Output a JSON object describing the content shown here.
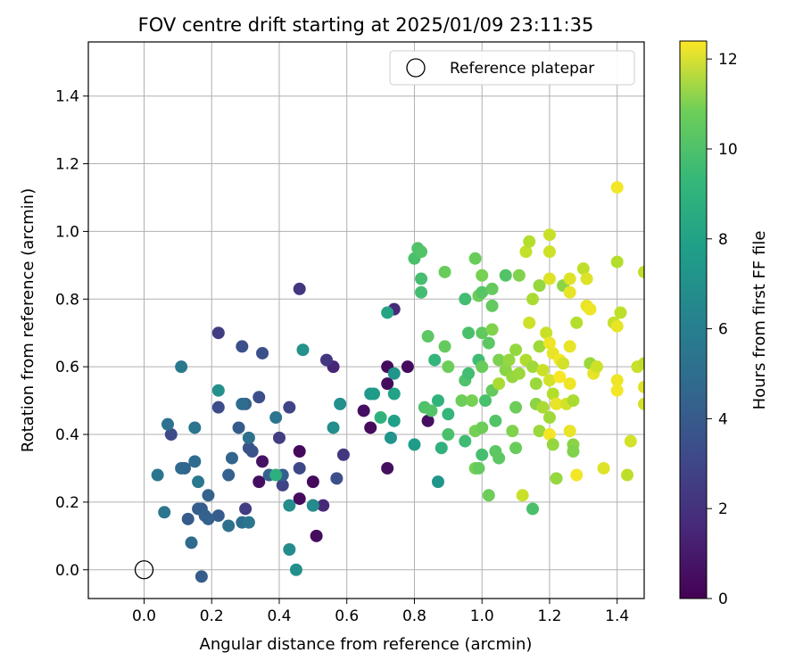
{
  "chart_data": {
    "type": "scatter",
    "title": "FOV centre drift starting at 2025/01/09 23:11:35",
    "xlabel": "Angular distance from reference (arcmin)",
    "ylabel": "Rotation from reference (arcmin)",
    "xlim": [
      -0.165,
      1.48
    ],
    "ylim": [
      -0.085,
      1.56
    ],
    "xticks": [
      "0.0",
      "0.2",
      "0.4",
      "0.6",
      "0.8",
      "1.0",
      "1.2",
      "1.4"
    ],
    "xtick_values": [
      0,
      0.2,
      0.4,
      0.6,
      0.8,
      1.0,
      1.2,
      1.4
    ],
    "yticks": [
      "0.0",
      "0.2",
      "0.4",
      "0.6",
      "0.8",
      "1.0",
      "1.2",
      "1.4"
    ],
    "ytick_values": [
      0,
      0.2,
      0.4,
      0.6,
      0.8,
      1.0,
      1.2,
      1.4
    ],
    "grid": true,
    "legend": {
      "label": "Reference platepar",
      "placement": "top-right",
      "marker": "open-circle"
    },
    "colorbar": {
      "label": "Hours from first FF file",
      "colormap": "viridis",
      "range": [
        0,
        12.4
      ],
      "ticks": [
        "0",
        "2",
        "4",
        "6",
        "8",
        "10",
        "12"
      ],
      "tick_values": [
        0,
        2,
        4,
        6,
        8,
        10,
        12
      ]
    },
    "reference_point": {
      "x": 0.0,
      "y": 0.0
    },
    "points": [
      [
        0.46,
        0.35,
        0.3
      ],
      [
        0.5,
        0.26,
        0.3
      ],
      [
        0.46,
        0.21,
        0.4
      ],
      [
        0.51,
        0.1,
        0.4
      ],
      [
        0.34,
        0.26,
        0.5
      ],
      [
        0.35,
        0.32,
        0.6
      ],
      [
        0.65,
        0.47,
        0.5
      ],
      [
        0.67,
        0.42,
        0.4
      ],
      [
        0.72,
        0.55,
        0.4
      ],
      [
        0.72,
        0.6,
        0.4
      ],
      [
        0.72,
        0.3,
        0.5
      ],
      [
        0.78,
        0.6,
        0.4
      ],
      [
        0.84,
        0.44,
        0.5
      ],
      [
        0.53,
        0.19,
        1.4
      ],
      [
        0.56,
        0.6,
        1.3
      ],
      [
        0.46,
        0.83,
        2.0
      ],
      [
        0.54,
        0.62,
        2.0
      ],
      [
        0.59,
        0.34,
        2.0
      ],
      [
        0.74,
        0.77,
        1.5
      ],
      [
        0.5,
        0.19,
        1.6
      ],
      [
        0.22,
        0.7,
        2.2
      ],
      [
        0.3,
        0.18,
        2.2
      ],
      [
        0.4,
        0.39,
        2.3
      ],
      [
        0.41,
        0.25,
        2.5
      ],
      [
        0.43,
        0.48,
        2.5
      ],
      [
        0.46,
        0.3,
        2.7
      ],
      [
        0.57,
        0.27,
        3.0
      ],
      [
        0.08,
        0.4,
        2.8
      ],
      [
        0.22,
        0.48,
        2.9
      ],
      [
        0.29,
        0.66,
        3.0
      ],
      [
        0.34,
        0.51,
        3.0
      ],
      [
        0.35,
        0.64,
        3.1
      ],
      [
        0.31,
        0.36,
        3.3
      ],
      [
        0.32,
        0.35,
        3.2
      ],
      [
        0.28,
        0.42,
        3.5
      ],
      [
        0.17,
        0.18,
        3.5
      ],
      [
        0.13,
        0.15,
        3.6
      ],
      [
        0.16,
        0.18,
        3.7
      ],
      [
        0.22,
        0.16,
        3.6
      ],
      [
        0.18,
        0.16,
        3.8
      ],
      [
        0.19,
        0.22,
        3.9
      ],
      [
        0.25,
        0.28,
        3.8
      ],
      [
        0.3,
        0.49,
        3.9
      ],
      [
        0.26,
        0.33,
        4.0
      ],
      [
        0.37,
        0.28,
        3.8
      ],
      [
        0.41,
        0.28,
        3.7
      ],
      [
        0.19,
        0.15,
        3.8
      ],
      [
        0.12,
        0.3,
        3.9
      ],
      [
        0.11,
        0.3,
        4.2
      ],
      [
        0.14,
        0.08,
        4.3
      ],
      [
        0.15,
        0.32,
        4.4
      ],
      [
        0.17,
        -0.02,
        3.6
      ],
      [
        0.29,
        0.49,
        4.4
      ],
      [
        0.31,
        0.39,
        4.6
      ],
      [
        0.39,
        0.45,
        4.8
      ],
      [
        0.25,
        0.13,
        4.6
      ],
      [
        0.29,
        0.14,
        4.4
      ],
      [
        0.31,
        0.14,
        4.9
      ],
      [
        0.16,
        0.26,
        5.0
      ],
      [
        0.04,
        0.28,
        4.9
      ],
      [
        0.07,
        0.43,
        4.6
      ],
      [
        0.15,
        0.42,
        4.8
      ],
      [
        0.11,
        0.6,
        5.0
      ],
      [
        0.06,
        0.17,
        4.8
      ],
      [
        0.22,
        0.53,
        6.2
      ],
      [
        0.43,
        0.06,
        6.0
      ],
      [
        0.43,
        0.19,
        6.1
      ],
      [
        0.45,
        0.0,
        6.2
      ],
      [
        0.47,
        0.65,
        6.3
      ],
      [
        0.5,
        0.19,
        6.0
      ],
      [
        0.56,
        0.42,
        6.1
      ],
      [
        0.58,
        0.49,
        6.2
      ],
      [
        0.67,
        0.52,
        6.5
      ],
      [
        0.68,
        0.52,
        6.8
      ],
      [
        0.73,
        0.39,
        6.4
      ],
      [
        0.74,
        0.58,
        6.4
      ],
      [
        0.72,
        0.76,
        7.2
      ],
      [
        0.74,
        0.52,
        7.1
      ],
      [
        0.74,
        0.44,
        7.0
      ],
      [
        0.8,
        0.37,
        6.8
      ],
      [
        0.87,
        0.26,
        6.5
      ],
      [
        0.39,
        0.28,
        7.8
      ],
      [
        0.7,
        0.45,
        8.0
      ],
      [
        0.8,
        0.92,
        8.8
      ],
      [
        0.81,
        0.95,
        8.9
      ],
      [
        0.82,
        0.82,
        8.6
      ],
      [
        0.82,
        0.94,
        9.0
      ],
      [
        0.82,
        0.86,
        8.7
      ],
      [
        0.83,
        0.48,
        8.9
      ],
      [
        0.85,
        0.47,
        9.0
      ],
      [
        0.84,
        0.69,
        9.2
      ],
      [
        0.87,
        0.5,
        8.0
      ],
      [
        0.86,
        0.62,
        8.1
      ],
      [
        0.88,
        0.36,
        7.9
      ],
      [
        0.89,
        0.88,
        9.5
      ],
      [
        0.89,
        0.66,
        9.4
      ],
      [
        0.9,
        0.6,
        9.6
      ],
      [
        0.9,
        0.46,
        8.2
      ],
      [
        0.9,
        0.4,
        8.8
      ],
      [
        0.94,
        0.5,
        9.6
      ],
      [
        0.95,
        0.8,
        8.6
      ],
      [
        0.95,
        0.56,
        8.9
      ],
      [
        0.95,
        0.38,
        8.5
      ],
      [
        0.96,
        0.58,
        8.6
      ],
      [
        0.96,
        0.7,
        8.8
      ],
      [
        0.97,
        0.5,
        9.8
      ],
      [
        0.98,
        0.3,
        9.8
      ],
      [
        0.98,
        0.92,
        9.5
      ],
      [
        0.98,
        0.41,
        9.8
      ],
      [
        0.99,
        0.62,
        8.5
      ],
      [
        0.99,
        0.3,
        9.4
      ],
      [
        0.99,
        0.81,
        9.6
      ],
      [
        1.0,
        0.87,
        9.8
      ],
      [
        1.0,
        0.42,
        9.6
      ],
      [
        1.0,
        0.6,
        9.5
      ],
      [
        1.0,
        0.34,
        8.7
      ],
      [
        1.0,
        0.7,
        9.3
      ],
      [
        1.0,
        0.82,
        9.1
      ],
      [
        1.01,
        0.5,
        8.8
      ],
      [
        1.02,
        0.22,
        9.6
      ],
      [
        1.02,
        0.67,
        9.2
      ],
      [
        1.03,
        0.53,
        9.4
      ],
      [
        1.03,
        0.78,
        9.4
      ],
      [
        1.03,
        0.83,
        9.4
      ],
      [
        1.03,
        0.71,
        10.0
      ],
      [
        1.04,
        0.44,
        9.0
      ],
      [
        1.04,
        0.35,
        9.2
      ],
      [
        1.05,
        0.33,
        9.2
      ],
      [
        1.05,
        0.62,
        9.9
      ],
      [
        1.05,
        0.55,
        10.8
      ],
      [
        1.07,
        0.87,
        9.0
      ],
      [
        1.07,
        0.59,
        10.2
      ],
      [
        1.08,
        0.62,
        10.4
      ],
      [
        1.09,
        0.57,
        10.4
      ],
      [
        1.09,
        0.41,
        10.0
      ],
      [
        1.1,
        0.36,
        9.5
      ],
      [
        1.1,
        0.48,
        9.6
      ],
      [
        1.1,
        0.65,
        10.4
      ],
      [
        1.11,
        0.58,
        10.5
      ],
      [
        1.11,
        0.87,
        10.0
      ],
      [
        1.12,
        0.22,
        11.4
      ],
      [
        1.13,
        0.94,
        11.3
      ],
      [
        1.13,
        0.62,
        10.9
      ],
      [
        1.14,
        0.97,
        11.0
      ],
      [
        1.14,
        0.73,
        11.5
      ],
      [
        1.15,
        0.18,
        8.8
      ],
      [
        1.15,
        0.8,
        10.8
      ],
      [
        1.15,
        0.6,
        10.6
      ],
      [
        1.16,
        0.55,
        10.5
      ],
      [
        1.16,
        0.49,
        10.2
      ],
      [
        1.17,
        0.41,
        10.5
      ],
      [
        1.17,
        0.66,
        10.6
      ],
      [
        1.17,
        0.84,
        10.4
      ],
      [
        1.18,
        0.48,
        10.8
      ],
      [
        1.18,
        0.59,
        11.4
      ],
      [
        1.19,
        0.7,
        11.4
      ],
      [
        1.2,
        0.56,
        11.6
      ],
      [
        1.2,
        0.99,
        11.4
      ],
      [
        1.2,
        0.94,
        11.5
      ],
      [
        1.2,
        0.86,
        11.8
      ],
      [
        1.2,
        0.45,
        10.6
      ],
      [
        1.2,
        0.4,
        12.2
      ],
      [
        1.2,
        0.67,
        12.1
      ],
      [
        1.21,
        0.37,
        10.4
      ],
      [
        1.21,
        0.52,
        11.0
      ],
      [
        1.21,
        0.64,
        12.0
      ],
      [
        1.22,
        0.49,
        12.0
      ],
      [
        1.22,
        0.27,
        10.4
      ],
      [
        1.23,
        0.62,
        12.2
      ],
      [
        1.23,
        0.57,
        12.3
      ],
      [
        1.24,
        0.61,
        11.6
      ],
      [
        1.24,
        0.84,
        10.2
      ],
      [
        1.25,
        0.49,
        11.6
      ],
      [
        1.26,
        0.86,
        11.8
      ],
      [
        1.26,
        0.82,
        12.0
      ],
      [
        1.26,
        0.55,
        12.1
      ],
      [
        1.26,
        0.66,
        12.0
      ],
      [
        1.26,
        0.41,
        12.0
      ],
      [
        1.27,
        0.37,
        10.2
      ],
      [
        1.27,
        0.35,
        10.0
      ],
      [
        1.27,
        0.5,
        10.8
      ],
      [
        1.28,
        0.73,
        11.0
      ],
      [
        1.28,
        0.28,
        12.2
      ],
      [
        1.3,
        0.89,
        11.2
      ],
      [
        1.31,
        0.86,
        11.8
      ],
      [
        1.31,
        0.78,
        12.0
      ],
      [
        1.32,
        0.77,
        12.1
      ],
      [
        1.32,
        0.61,
        10.5
      ],
      [
        1.33,
        0.58,
        12.0
      ],
      [
        1.34,
        0.6,
        11.5
      ],
      [
        1.36,
        0.3,
        11.8
      ],
      [
        1.39,
        0.73,
        11.3
      ],
      [
        1.4,
        1.13,
        12.2
      ],
      [
        1.4,
        0.91,
        11.0
      ],
      [
        1.4,
        0.72,
        12.0
      ],
      [
        1.4,
        0.56,
        12.1
      ],
      [
        1.4,
        0.53,
        12.2
      ],
      [
        1.41,
        0.76,
        11.2
      ],
      [
        1.43,
        0.28,
        11.2
      ],
      [
        1.44,
        0.38,
        11.6
      ],
      [
        1.46,
        0.6,
        11.4
      ],
      [
        1.48,
        0.49,
        11.6
      ],
      [
        1.48,
        0.54,
        11.8
      ],
      [
        1.48,
        0.61,
        11.2
      ],
      [
        1.48,
        0.88,
        11.2
      ]
    ]
  }
}
